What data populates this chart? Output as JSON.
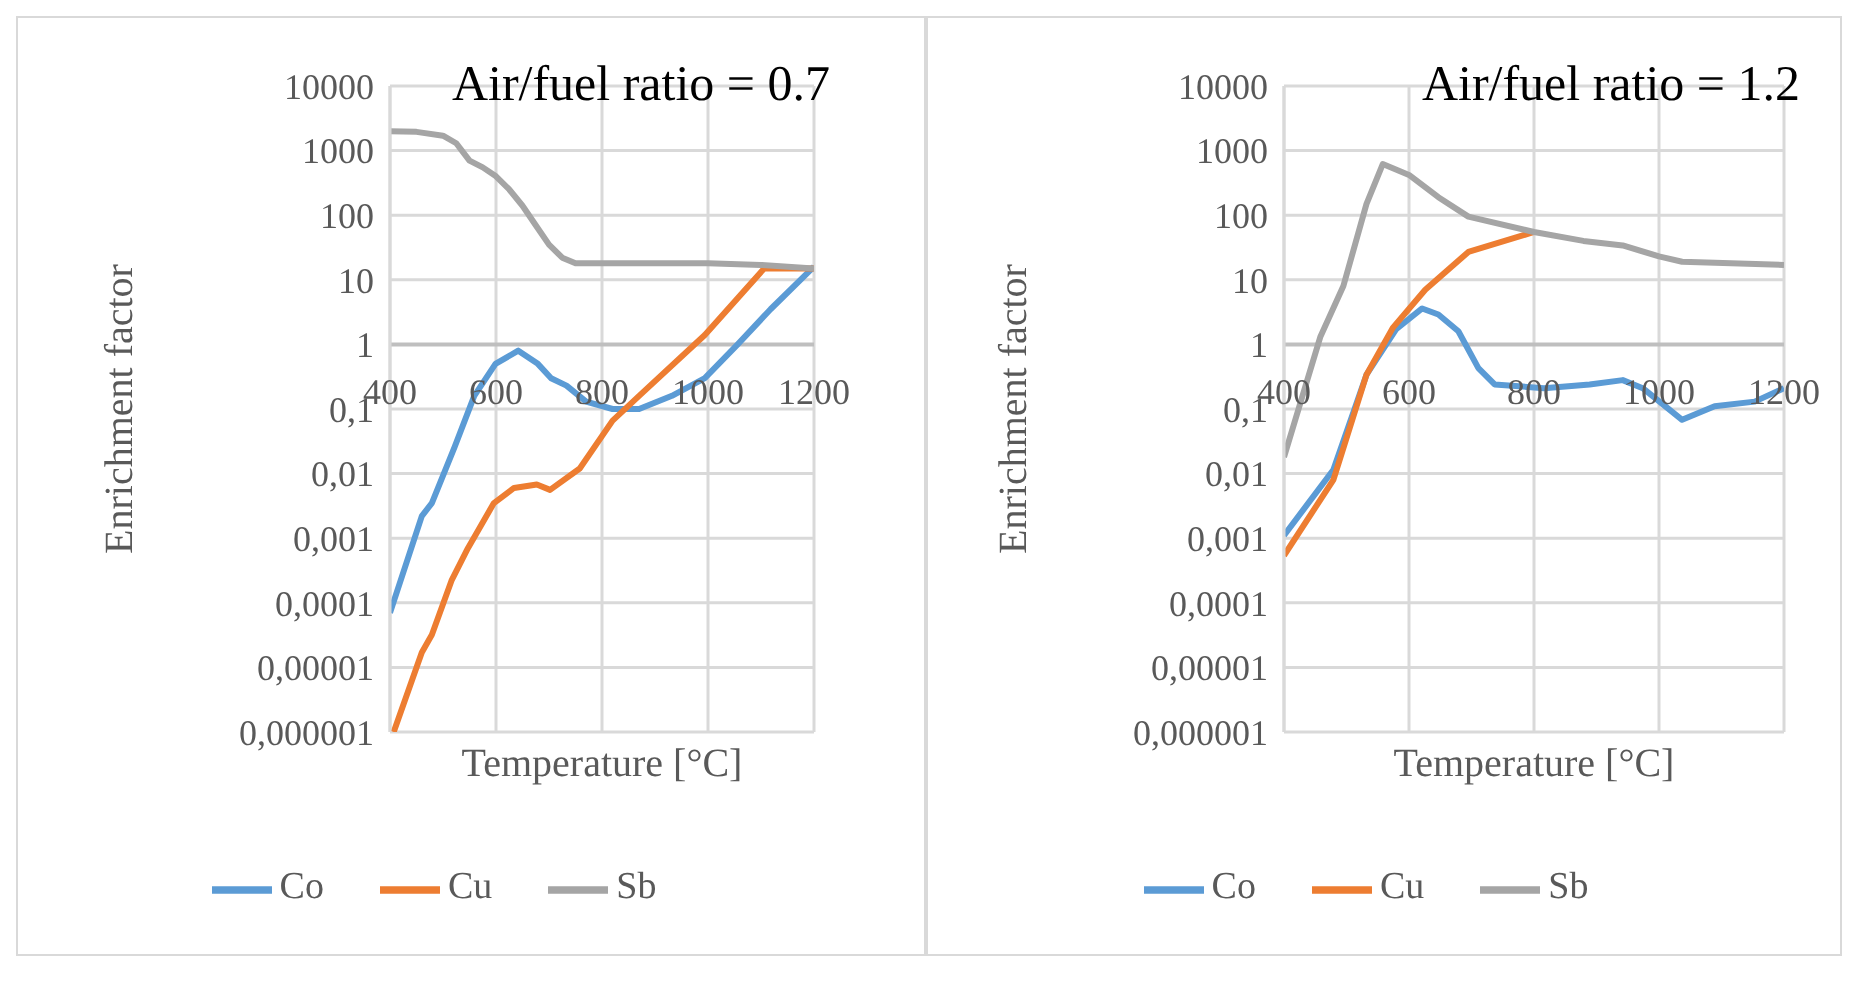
{
  "chart_data": [
    {
      "type": "line",
      "title": "Air/fuel ratio = 0.7",
      "xlabel": "Temperature [°C]",
      "ylabel": "Enrichment factor",
      "xlim": [
        400,
        1200
      ],
      "xticks": [
        400,
        600,
        800,
        1000,
        1200
      ],
      "ylim": [
        1e-06,
        10000
      ],
      "yticks": [
        10000,
        1000,
        100,
        10,
        1,
        {
          "value": 0.1,
          "label": "0,1"
        },
        {
          "value": 0.01,
          "label": "0,01"
        },
        {
          "value": 0.001,
          "label": "0,001"
        },
        {
          "value": 0.0001,
          "label": "0,0001"
        },
        {
          "value": 1e-05,
          "label": "0,00001"
        },
        {
          "value": 1e-06,
          "label": "0,000001"
        }
      ],
      "log": "y",
      "grid": true,
      "legend": "bottom",
      "series": [
        {
          "name": "Co",
          "color": "#5b9bd5",
          "x": [
            400,
            460,
            479,
            522,
            559,
            599,
            642,
            679,
            704,
            733,
            770,
            820,
            870,
            932,
            994,
            1056,
            1118,
            1200
          ],
          "values": [
            7e-05,
            0.0022,
            0.0035,
            0.026,
            0.16,
            0.5,
            0.8,
            0.5,
            0.3,
            0.23,
            0.13,
            0.1,
            0.1,
            0.16,
            0.3,
            1,
            3.5,
            16
          ]
        },
        {
          "name": "Cu",
          "color": "#ed7d31",
          "x": [
            407,
            460,
            479,
            516,
            547,
            596,
            634,
            677,
            702,
            758,
            820,
            870,
            994,
            1106,
            1200
          ],
          "values": [
            1e-06,
            1.7e-05,
            3.2e-05,
            0.00022,
            0.0007,
            0.0035,
            0.006,
            0.0068,
            0.0056,
            0.012,
            0.066,
            0.16,
            1.4,
            15,
            15
          ]
        },
        {
          "name": "Sb",
          "color": "#a5a5a5",
          "x": [
            400,
            450,
            500,
            525,
            550,
            575,
            600,
            625,
            650,
            675,
            700,
            725,
            750,
            800,
            900,
            1000,
            1100,
            1200
          ],
          "values": [
            2000,
            1950,
            1700,
            1300,
            700,
            550,
            400,
            250,
            140,
            70,
            35,
            22,
            18,
            18,
            18,
            18,
            17,
            15
          ]
        }
      ]
    },
    {
      "type": "line",
      "title": "Air/fuel ratio = 1.2",
      "xlabel": "Temperature [°C]",
      "ylabel": "Enrichment factor",
      "xlim": [
        400,
        1200
      ],
      "xticks": [
        400,
        600,
        800,
        1000,
        1200
      ],
      "ylim": [
        1e-06,
        10000
      ],
      "yticks": [
        10000,
        1000,
        100,
        10,
        1,
        {
          "value": 0.1,
          "label": "0,1"
        },
        {
          "value": 0.01,
          "label": "0,01"
        },
        {
          "value": 0.001,
          "label": "0,001"
        },
        {
          "value": 0.0001,
          "label": "0,0001"
        },
        {
          "value": 1e-05,
          "label": "0,00001"
        },
        {
          "value": 1e-06,
          "label": "0,000001"
        }
      ],
      "log": "y",
      "grid": true,
      "legend": "bottom",
      "series": [
        {
          "name": "Co",
          "color": "#5b9bd5",
          "x": [
            400,
            479,
            532,
            579,
            621,
            647,
            679,
            711,
            737,
            816,
            889,
            942,
            974,
            1037,
            1089,
            1153,
            1200
          ],
          "values": [
            0.0011,
            0.0115,
            0.34,
            1.7,
            3.6,
            2.9,
            1.6,
            0.43,
            0.24,
            0.21,
            0.24,
            0.28,
            0.21,
            0.068,
            0.11,
            0.13,
            0.21
          ]
        },
        {
          "name": "Cu",
          "color": "#ed7d31",
          "x": [
            400,
            479,
            532,
            574,
            626,
            695,
            800
          ],
          "values": [
            0.00054,
            0.008,
            0.34,
            1.8,
            7,
            27,
            55
          ]
        },
        {
          "name": "Sb",
          "color": "#a5a5a5",
          "x": [
            400,
            458,
            495,
            532,
            558,
            600,
            647,
            695,
            800,
            879,
            942,
            1000,
            1037,
            1200
          ],
          "values": [
            0.018,
            1.3,
            8,
            150,
            620,
            420,
            190,
            95,
            55,
            40,
            34,
            23,
            19,
            17
          ]
        }
      ]
    }
  ]
}
